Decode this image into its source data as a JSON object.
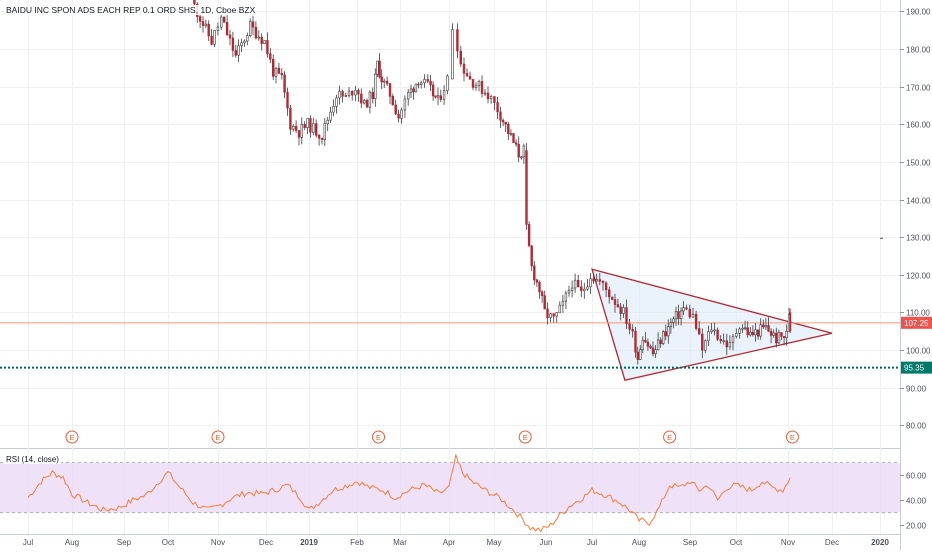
{
  "header": {
    "title": "BAIDU INC SPON ADS EACH REP 0.1 ORD SHS, 1D, Cboe BZX"
  },
  "rsi": {
    "label": "RSI (14, close)"
  },
  "colors": {
    "up": "#26a69a",
    "down": "#b22833",
    "candle_body": "#3a3a3a",
    "triangle_stroke": "#b22833",
    "triangle_fill": "#d8e8f8",
    "price_line": "#ef9a7a",
    "support_line": "#00695c",
    "price_tag": "#ef5350",
    "support_tag": "#00796b",
    "rsi_line": "#f57c3a",
    "rsi_band": "#e9d8f5",
    "earnings": "#e0603a",
    "grid": "#eef0f3",
    "axis_text": "#4a4f5a"
  },
  "chart_data": [
    {
      "type": "candlestick",
      "title": "BAIDU INC SPON ADS EACH REP 0.1 ORD SHS, 1D, Cboe BZX",
      "y_axis_ticks": [
        "190.00",
        "180.00",
        "170.00",
        "160.00",
        "150.00",
        "140.00",
        "130.00",
        "120.00",
        "110.00",
        "100.00",
        "90.00",
        "80.00"
      ],
      "ylim": [
        74,
        193
      ],
      "x_axis_ticks": [
        "Jul",
        "Aug",
        "Sep",
        "Oct",
        "Nov",
        "Dec",
        "2019",
        "Feb",
        "Mar",
        "Apr",
        "May",
        "Jun",
        "Jul",
        "Aug",
        "Sep",
        "Oct",
        "Nov",
        "Dec",
        "2020"
      ],
      "x_months_index": [
        0,
        1,
        2,
        3,
        4,
        5,
        6,
        7,
        8,
        9,
        10,
        11,
        12,
        13,
        14,
        15,
        16,
        17,
        18
      ],
      "price_path": [
        [
          3.5,
          193
        ],
        [
          3.9,
          182
        ],
        [
          4.1,
          188
        ],
        [
          4.4,
          178
        ],
        [
          4.7,
          186
        ],
        [
          5.0,
          182
        ],
        [
          5.2,
          174
        ],
        [
          5.4,
          172
        ],
        [
          5.6,
          160
        ],
        [
          5.8,
          158
        ],
        [
          6.0,
          160
        ],
        [
          6.3,
          157
        ],
        [
          6.6,
          168
        ],
        [
          6.8,
          167
        ],
        [
          7.0,
          170
        ],
        [
          7.2,
          165
        ],
        [
          7.4,
          168
        ],
        [
          7.5,
          176
        ],
        [
          7.6,
          172
        ],
        [
          7.8,
          168
        ],
        [
          8.0,
          162
        ],
        [
          8.2,
          168
        ],
        [
          8.4,
          172
        ],
        [
          8.6,
          170
        ],
        [
          8.8,
          166
        ],
        [
          9.0,
          172
        ],
        [
          9.15,
          186
        ],
        [
          9.3,
          176
        ],
        [
          9.5,
          172
        ],
        [
          9.7,
          170
        ],
        [
          9.9,
          168
        ],
        [
          10.1,
          164
        ],
        [
          10.3,
          158
        ],
        [
          10.5,
          152
        ],
        [
          10.6,
          153
        ],
        [
          10.65,
          132
        ],
        [
          10.75,
          122
        ],
        [
          10.9,
          116
        ],
        [
          11.0,
          110
        ],
        [
          11.2,
          108
        ],
        [
          11.4,
          112
        ],
        [
          11.6,
          118
        ],
        [
          11.8,
          115
        ],
        [
          12.0,
          120
        ],
        [
          12.2,
          118
        ],
        [
          12.4,
          115
        ],
        [
          12.7,
          110
        ],
        [
          12.9,
          104
        ],
        [
          13.0,
          98
        ],
        [
          13.1,
          104
        ],
        [
          13.3,
          99
        ],
        [
          13.5,
          104
        ],
        [
          13.7,
          108
        ],
        [
          13.9,
          111
        ],
        [
          14.1,
          109
        ],
        [
          14.3,
          100
        ],
        [
          14.5,
          106
        ],
        [
          14.7,
          103
        ],
        [
          14.9,
          101
        ],
        [
          15.1,
          107
        ],
        [
          15.3,
          104
        ],
        [
          15.6,
          106
        ],
        [
          15.8,
          103
        ],
        [
          16.0,
          104
        ],
        [
          16.05,
          110
        ]
      ],
      "triangle": [
        [
          12.0,
          121.5
        ],
        [
          17.0,
          104.5
        ],
        [
          12.7,
          92
        ]
      ],
      "horizontal_lines": [
        {
          "value": 107.25,
          "label": "107.25"
        },
        {
          "value": 95.35,
          "label": "95.35"
        }
      ],
      "stray_tick": {
        "x": 18.0,
        "y": 129.7
      },
      "earnings_markers": {
        "label": "E",
        "x": [
          1.0,
          4.0,
          7.5,
          10.6,
          13.6,
          16.1
        ]
      }
    },
    {
      "type": "line",
      "title": "RSI (14, close)",
      "y_axis_ticks": [
        "60.00",
        "40.00",
        "20.00"
      ],
      "ylim": [
        13,
        80
      ],
      "band": [
        30,
        70
      ],
      "midline": 50,
      "rsi_path": [
        [
          0.0,
          42
        ],
        [
          0.3,
          55
        ],
        [
          0.55,
          62
        ],
        [
          0.8,
          58
        ],
        [
          1.0,
          45
        ],
        [
          1.3,
          38
        ],
        [
          1.6,
          32
        ],
        [
          1.9,
          34
        ],
        [
          2.2,
          40
        ],
        [
          2.5,
          44
        ],
        [
          2.8,
          55
        ],
        [
          3.0,
          62
        ],
        [
          3.2,
          52
        ],
        [
          3.5,
          38
        ],
        [
          3.8,
          32
        ],
        [
          4.0,
          35
        ],
        [
          4.3,
          42
        ],
        [
          4.6,
          46
        ],
        [
          4.9,
          45
        ],
        [
          5.2,
          48
        ],
        [
          5.5,
          52
        ],
        [
          5.8,
          42
        ],
        [
          6.0,
          32
        ],
        [
          6.2,
          38
        ],
        [
          6.5,
          48
        ],
        [
          6.8,
          52
        ],
        [
          7.0,
          55
        ],
        [
          7.3,
          50
        ],
        [
          7.6,
          48
        ],
        [
          7.9,
          42
        ],
        [
          8.2,
          48
        ],
        [
          8.5,
          52
        ],
        [
          8.8,
          45
        ],
        [
          9.0,
          50
        ],
        [
          9.15,
          74
        ],
        [
          9.3,
          62
        ],
        [
          9.5,
          55
        ],
        [
          9.8,
          48
        ],
        [
          10.1,
          42
        ],
        [
          10.3,
          35
        ],
        [
          10.55,
          25
        ],
        [
          10.7,
          18
        ],
        [
          10.9,
          16
        ],
        [
          11.1,
          20
        ],
        [
          11.3,
          28
        ],
        [
          11.5,
          35
        ],
        [
          11.8,
          42
        ],
        [
          12.0,
          48
        ],
        [
          12.3,
          44
        ],
        [
          12.6,
          38
        ],
        [
          12.8,
          32
        ],
        [
          13.0,
          24
        ],
        [
          13.2,
          22
        ],
        [
          13.4,
          34
        ],
        [
          13.6,
          52
        ],
        [
          13.8,
          50
        ],
        [
          14.0,
          55
        ],
        [
          14.2,
          48
        ],
        [
          14.4,
          52
        ],
        [
          14.6,
          40
        ],
        [
          14.8,
          50
        ],
        [
          15.0,
          52
        ],
        [
          15.3,
          48
        ],
        [
          15.5,
          55
        ],
        [
          15.7,
          50
        ],
        [
          15.9,
          48
        ],
        [
          16.05,
          58
        ]
      ]
    }
  ]
}
